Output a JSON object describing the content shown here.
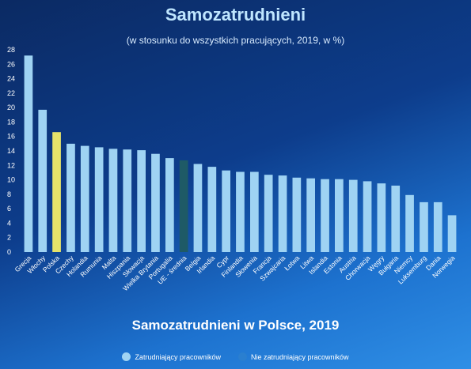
{
  "header": {
    "title": "Samozatrudnieni",
    "subtitle": "(w stosunku do wszystkich pracujących, 2019, w %)"
  },
  "footer": {
    "title": "Samozatrudnieni w Polsce, 2019"
  },
  "legend": {
    "items": [
      {
        "label": "Zatrudniający pracowników",
        "color": "#9fd3f3"
      },
      {
        "label": "Nie zatrudniający pracowników",
        "color": "#2a7fd0"
      }
    ]
  },
  "colors": {
    "bar": "#9fd3f3",
    "highlight_poland": "#e6e36a",
    "highlight_eu": "#1e5a66",
    "axis_text": "#ffffff"
  },
  "chart_data": {
    "type": "bar",
    "ylim": [
      0,
      28
    ],
    "yticks": [
      0,
      2,
      4,
      6,
      8,
      10,
      12,
      14,
      16,
      18,
      20,
      22,
      24,
      26,
      28
    ],
    "grid": false,
    "categories": [
      "Grecja",
      "Włochy",
      "Polska",
      "Czechy",
      "Holandia",
      "Rumunia",
      "Malta",
      "Hiszpania",
      "Słowacja",
      "Wielka Brytania",
      "Portugalia",
      "UE - średnia",
      "Belgia",
      "Irlandia",
      "Cypr",
      "Finlandia",
      "Słowenia",
      "Francja",
      "Szwajcaria",
      "Łotwa",
      "Litwa",
      "Islandia",
      "Estonia",
      "Austria",
      "Chorwacja",
      "Węgry",
      "Bułgaria",
      "Niemcy",
      "Luksemburg",
      "Dania",
      "Norwegia"
    ],
    "values": [
      27.2,
      19.7,
      16.6,
      15.0,
      14.7,
      14.5,
      14.3,
      14.2,
      14.1,
      13.6,
      13.0,
      12.7,
      12.2,
      11.8,
      11.3,
      11.1,
      11.1,
      10.7,
      10.6,
      10.3,
      10.2,
      10.1,
      10.1,
      10.0,
      9.8,
      9.5,
      9.2,
      7.9,
      6.9,
      6.9,
      5.1
    ],
    "highlights": {
      "Polska": "highlight_poland",
      "UE - średnia": "highlight_eu"
    }
  }
}
